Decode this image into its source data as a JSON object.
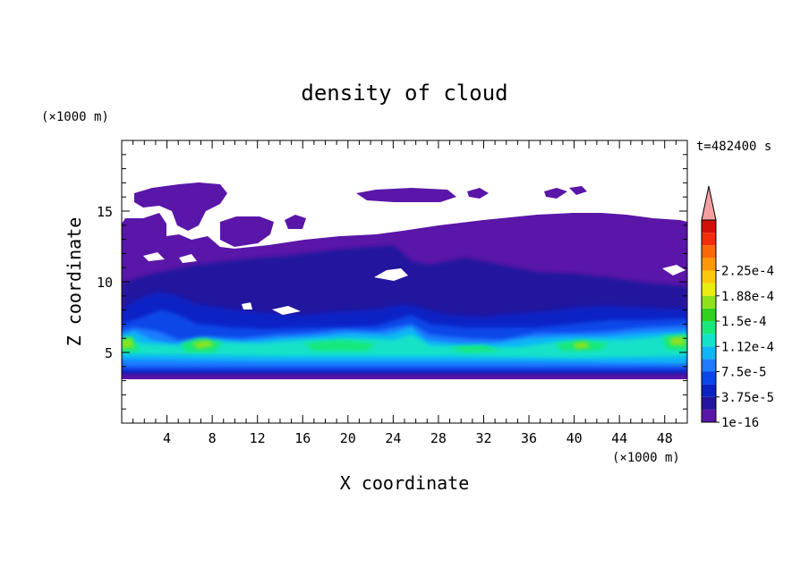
{
  "chart_data": {
    "type": "heatmap",
    "title": "density of cloud",
    "xlabel": "X coordinate",
    "ylabel": "Z coordinate",
    "x_unit": "(×1000 m)",
    "y_unit": "(×1000 m)",
    "time_label": "t=482400 s",
    "xlim": [
      0,
      50
    ],
    "ylim": [
      0,
      20
    ],
    "x_ticks": [
      "4",
      "8",
      "12",
      "16",
      "20",
      "24",
      "28",
      "32",
      "36",
      "40",
      "44",
      "48"
    ],
    "y_ticks": [
      "5",
      "10",
      "15"
    ],
    "colorbar": {
      "labels": [
        "1e-16",
        "3.75e-5",
        "7.5e-5",
        "1.12e-4",
        "1.5e-4",
        "1.88e-4",
        "2.25e-4"
      ],
      "colors": [
        "#5a16a8",
        "#22149e",
        "#0a22c4",
        "#0a46e8",
        "#1e7cff",
        "#0eb6f6",
        "#12e2c8",
        "#18e87a",
        "#2ed21c",
        "#8ee21a",
        "#e8ec10",
        "#fcc80a",
        "#fc9808",
        "#fc6806",
        "#f22e0a",
        "#d2100a",
        "#f4a0a0"
      ],
      "extend": "max"
    },
    "regions": [
      {
        "level": 1,
        "desc": "upper anvil layer z 8-14 km"
      },
      {
        "level": 3,
        "desc": "mid layer z 5-9 km"
      },
      {
        "level": 6,
        "desc": "core band z 4-6.5 km"
      },
      {
        "level": 9,
        "desc": "peak near x 8, 40, 48"
      }
    ]
  }
}
